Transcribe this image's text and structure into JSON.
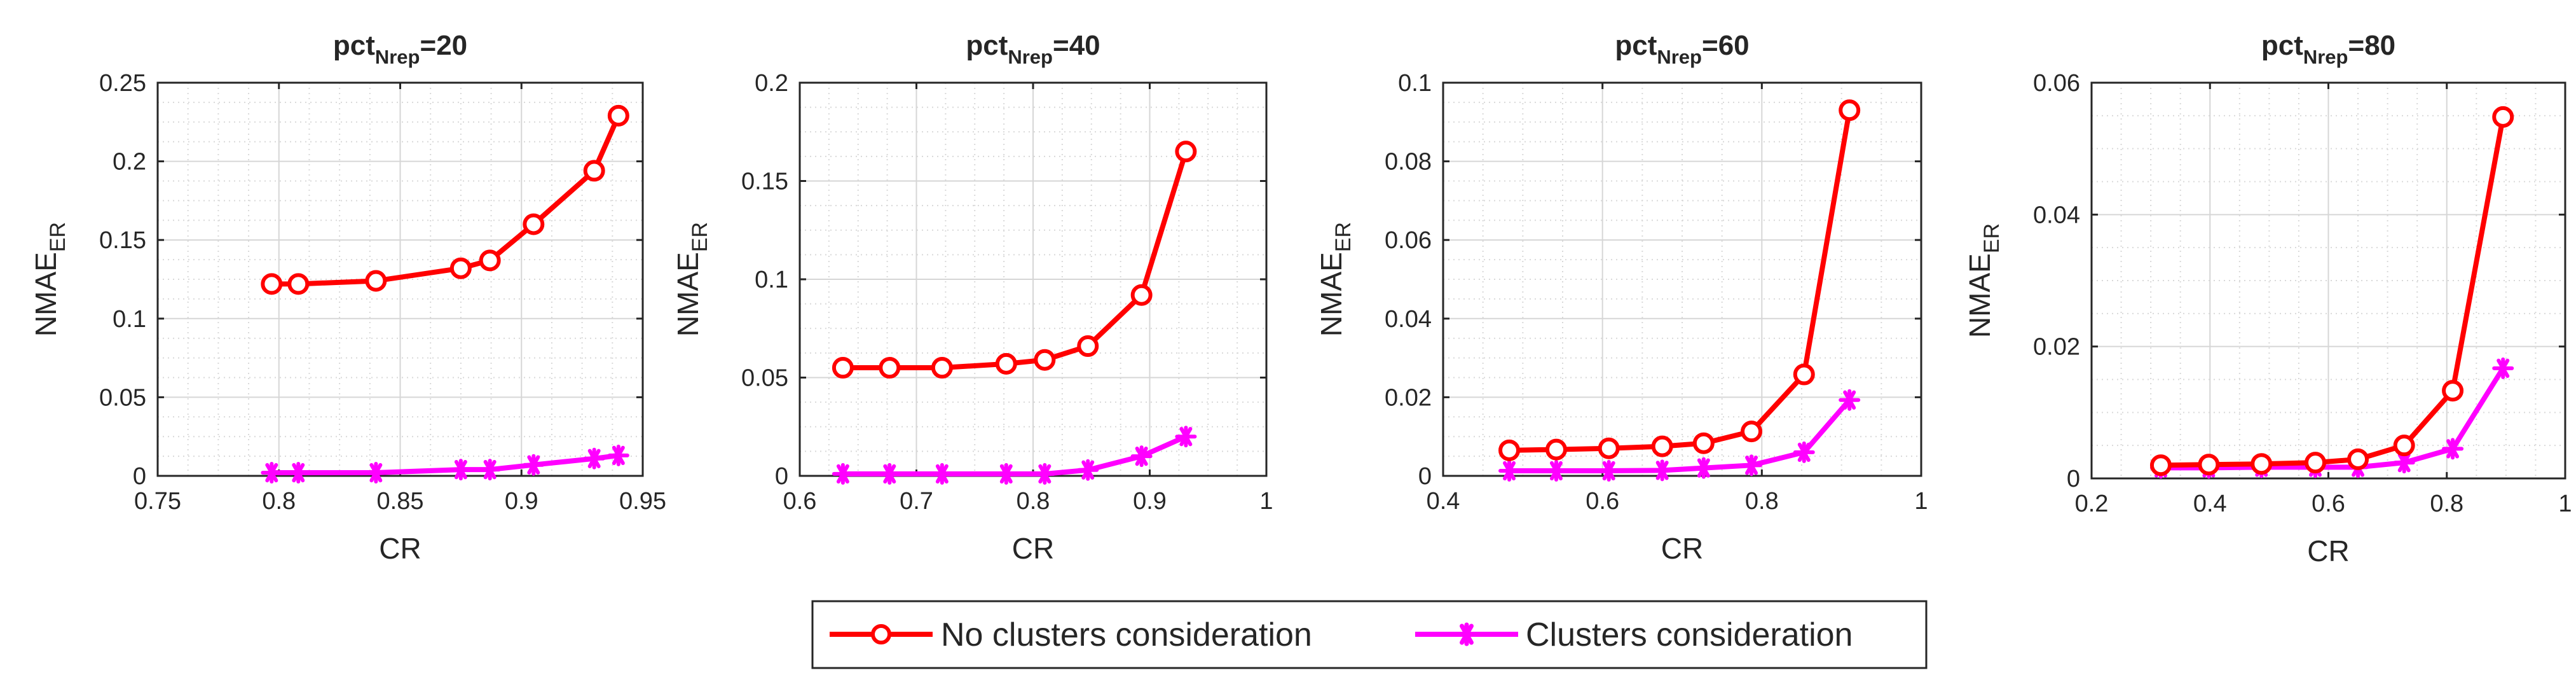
{
  "colors": {
    "no_clusters": "#ff0000",
    "clusters": "#ff00ff",
    "axis": "#262626",
    "grid_major": "#d6d6d6",
    "grid_minor": "#d9d9d9"
  },
  "legend": {
    "entries": [
      {
        "label": "No clusters consideration",
        "series": "no_clusters",
        "marker": "circle"
      },
      {
        "label": "Clusters consideration",
        "series": "clusters",
        "marker": "asterisk"
      }
    ]
  },
  "chart_data": [
    {
      "type": "line",
      "title": {
        "base": "pct",
        "sub": "Nrep",
        "rest": "=20"
      },
      "xlabel": "CR",
      "ylabel": {
        "base": "NMAE",
        "sub": "ER"
      },
      "xlim": [
        0.75,
        0.95
      ],
      "ylim": [
        0,
        0.25
      ],
      "xticks": [
        0.75,
        0.8,
        0.85,
        0.9,
        0.95
      ],
      "xtick_labels": [
        "0.75",
        "0.8",
        "0.85",
        "0.9",
        "0.95"
      ],
      "yticks": [
        0,
        0.05,
        0.1,
        0.15,
        0.2,
        0.25
      ],
      "ytick_labels": [
        "0",
        "0.05",
        "0.1",
        "0.15",
        "0.2",
        "0.25"
      ],
      "grid": true,
      "series": [
        {
          "name": "No clusters consideration",
          "key": "no_clusters",
          "marker": "circle",
          "x": [
            0.797,
            0.808,
            0.84,
            0.875,
            0.887,
            0.905,
            0.93,
            0.94
          ],
          "y": [
            0.122,
            0.122,
            0.124,
            0.132,
            0.137,
            0.16,
            0.194,
            0.229
          ]
        },
        {
          "name": "Clusters consideration",
          "key": "clusters",
          "marker": "asterisk",
          "x": [
            0.797,
            0.808,
            0.84,
            0.875,
            0.887,
            0.905,
            0.93,
            0.94
          ],
          "y": [
            0.002,
            0.002,
            0.002,
            0.004,
            0.004,
            0.007,
            0.011,
            0.013
          ]
        }
      ]
    },
    {
      "type": "line",
      "title": {
        "base": "pct",
        "sub": "Nrep",
        "rest": "=40"
      },
      "xlabel": "CR",
      "ylabel": {
        "base": "NMAE",
        "sub": "ER"
      },
      "xlim": [
        0.6,
        1
      ],
      "ylim": [
        0,
        0.2
      ],
      "xticks": [
        0.6,
        0.7,
        0.8,
        0.9,
        1
      ],
      "xtick_labels": [
        "0.6",
        "0.7",
        "0.8",
        "0.9",
        "1"
      ],
      "yticks": [
        0,
        0.05,
        0.1,
        0.15,
        0.2
      ],
      "ytick_labels": [
        "0",
        "0.05",
        "0.1",
        "0.15",
        "0.2"
      ],
      "grid": true,
      "series": [
        {
          "name": "No clusters consideration",
          "key": "no_clusters",
          "marker": "circle",
          "x": [
            0.637,
            0.677,
            0.722,
            0.777,
            0.81,
            0.847,
            0.893,
            0.931
          ],
          "y": [
            0.055,
            0.055,
            0.055,
            0.057,
            0.059,
            0.066,
            0.092,
            0.165
          ]
        },
        {
          "name": "Clusters consideration",
          "key": "clusters",
          "marker": "asterisk",
          "x": [
            0.637,
            0.677,
            0.722,
            0.777,
            0.81,
            0.847,
            0.893,
            0.931
          ],
          "y": [
            0.001,
            0.001,
            0.001,
            0.001,
            0.001,
            0.003,
            0.01,
            0.02
          ]
        }
      ]
    },
    {
      "type": "line",
      "title": {
        "base": "pct",
        "sub": "Nrep",
        "rest": "=60"
      },
      "xlabel": "CR",
      "ylabel": {
        "base": "NMAE",
        "sub": "ER"
      },
      "xlim": [
        0.4,
        1
      ],
      "ylim": [
        0,
        0.1
      ],
      "xticks": [
        0.4,
        0.6,
        0.8,
        1
      ],
      "xtick_labels": [
        "0.4",
        "0.6",
        "0.8",
        "1"
      ],
      "yticks": [
        0,
        0.02,
        0.04,
        0.06,
        0.08,
        0.1
      ],
      "ytick_labels": [
        "0",
        "0.02",
        "0.04",
        "0.06",
        "0.08",
        "0.1"
      ],
      "grid": true,
      "series": [
        {
          "name": "No clusters consideration",
          "key": "no_clusters",
          "marker": "circle",
          "x": [
            0.483,
            0.542,
            0.608,
            0.675,
            0.727,
            0.787,
            0.853,
            0.91
          ],
          "y": [
            0.0065,
            0.0067,
            0.007,
            0.0075,
            0.0083,
            0.0113,
            0.0258,
            0.093
          ]
        },
        {
          "name": "Clusters consideration",
          "key": "clusters",
          "marker": "asterisk",
          "x": [
            0.483,
            0.542,
            0.608,
            0.675,
            0.727,
            0.787,
            0.853,
            0.91
          ],
          "y": [
            0.0013,
            0.0013,
            0.0013,
            0.0014,
            0.002,
            0.0027,
            0.006,
            0.0193
          ]
        }
      ]
    },
    {
      "type": "line",
      "title": {
        "base": "pct",
        "sub": "Nrep",
        "rest": "=80"
      },
      "xlabel": "CR",
      "ylabel": {
        "base": "NMAE",
        "sub": "ER"
      },
      "xlim": [
        0.2,
        1
      ],
      "ylim": [
        0,
        0.06
      ],
      "xticks": [
        0.2,
        0.4,
        0.6,
        0.8,
        1
      ],
      "xtick_labels": [
        "0.2",
        "0.4",
        "0.6",
        "0.8",
        "1"
      ],
      "yticks": [
        0,
        0.02,
        0.04,
        0.06
      ],
      "ytick_labels": [
        "0",
        "0.02",
        "0.04",
        "0.06"
      ],
      "grid": true,
      "series": [
        {
          "name": "No clusters consideration",
          "key": "no_clusters",
          "marker": "circle",
          "x": [
            0.317,
            0.398,
            0.487,
            0.578,
            0.65,
            0.728,
            0.81,
            0.895
          ],
          "y": [
            0.002,
            0.0021,
            0.0022,
            0.0024,
            0.0029,
            0.005,
            0.0133,
            0.0548
          ]
        },
        {
          "name": "Clusters consideration",
          "key": "clusters",
          "marker": "asterisk",
          "x": [
            0.317,
            0.398,
            0.487,
            0.578,
            0.65,
            0.728,
            0.81,
            0.895
          ],
          "y": [
            0.0016,
            0.0016,
            0.0017,
            0.0017,
            0.0017,
            0.0024,
            0.0045,
            0.0167
          ]
        }
      ]
    }
  ]
}
